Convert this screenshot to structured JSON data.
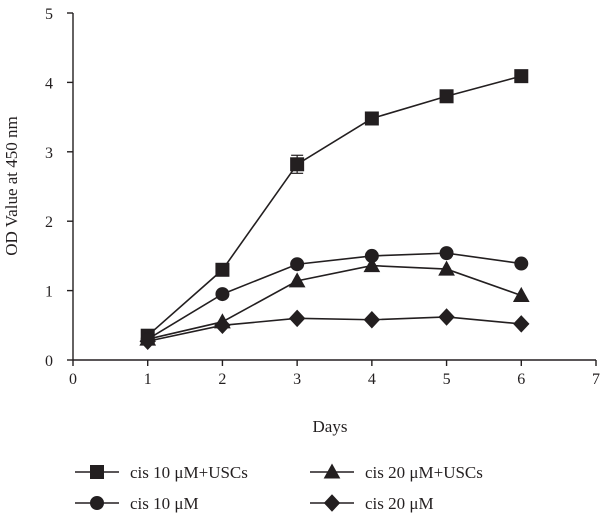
{
  "chart_data": {
    "type": "line",
    "xlabel": "Days",
    "ylabel": "OD Value at 450 nm",
    "xlim": [
      0,
      7
    ],
    "ylim": [
      0,
      5
    ],
    "x_ticks": [
      "0",
      "1",
      "2",
      "3",
      "4",
      "5",
      "6",
      "7"
    ],
    "y_ticks": [
      "0",
      "1",
      "2",
      "3",
      "4",
      "5"
    ],
    "x": [
      1,
      2,
      3,
      4,
      5,
      6
    ],
    "grid": false,
    "legend_position": "bottom",
    "series": [
      {
        "name": "cis 10 μM+USCs",
        "marker": "square",
        "values": [
          0.35,
          1.3,
          2.82,
          3.48,
          3.8,
          4.09
        ],
        "errors": [
          0.05,
          0.08,
          0.13,
          0.05,
          0.04,
          0.04
        ]
      },
      {
        "name": "cis 20 μM+USCs",
        "marker": "triangle",
        "values": [
          0.3,
          0.55,
          1.14,
          1.36,
          1.31,
          0.93
        ],
        "errors": [
          0,
          0,
          0,
          0,
          0,
          0
        ]
      },
      {
        "name": "cis 10 μM",
        "marker": "circle",
        "values": [
          0.3,
          0.95,
          1.38,
          1.5,
          1.54,
          1.39
        ],
        "errors": [
          0,
          0,
          0,
          0,
          0,
          0
        ]
      },
      {
        "name": "cis 20 μM",
        "marker": "diamond",
        "values": [
          0.27,
          0.5,
          0.6,
          0.58,
          0.62,
          0.52
        ],
        "errors": [
          0,
          0,
          0,
          0,
          0,
          0
        ]
      }
    ]
  }
}
